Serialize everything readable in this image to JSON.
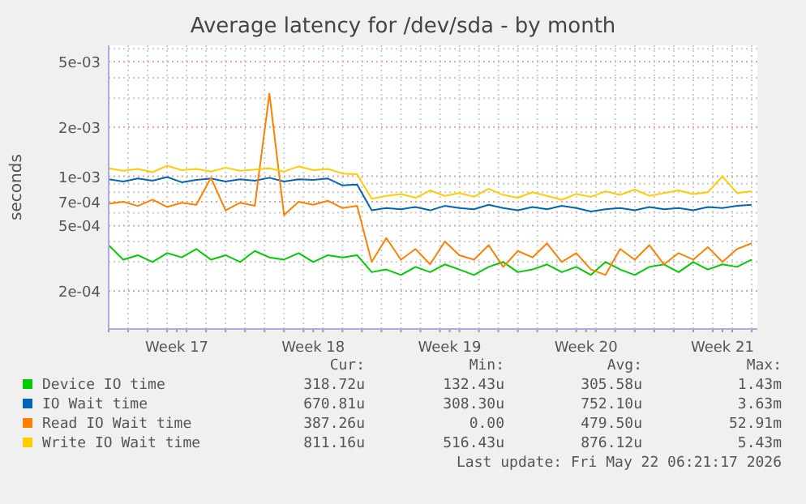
{
  "chart_data": {
    "type": "line",
    "title": "Average latency for /dev/sda - by month",
    "ylabel": "seconds",
    "log": "y",
    "grid": true,
    "legend": "bottom",
    "marker": "none",
    "line_style": "solid",
    "xlim": [
      "2026-04-20T00:00",
      "2026-05-23T07:00"
    ],
    "xticks": [
      {
        "value": "2026-04-20",
        "label": null
      },
      {
        "value": "2026-04-21",
        "label": null
      },
      {
        "value": "2026-04-22",
        "label": null
      },
      {
        "value": "2026-04-23",
        "label": null
      },
      {
        "value": "2026-04-23T12:00",
        "label": "Week 17"
      },
      {
        "value": "2026-04-24",
        "label": null
      },
      {
        "value": "2026-04-25",
        "label": null
      },
      {
        "value": "2026-04-26",
        "label": null
      },
      {
        "value": "2026-04-27",
        "label": null
      },
      {
        "value": "2026-04-28",
        "label": null
      },
      {
        "value": "2026-04-29",
        "label": null
      },
      {
        "value": "2026-04-30",
        "label": null
      },
      {
        "value": "2026-04-30T12:00",
        "label": "Week 18"
      },
      {
        "value": "2026-05-01",
        "label": null
      },
      {
        "value": "2026-05-02",
        "label": null
      },
      {
        "value": "2026-05-03",
        "label": null
      },
      {
        "value": "2026-05-04",
        "label": null
      },
      {
        "value": "2026-05-05",
        "label": null
      },
      {
        "value": "2026-05-06",
        "label": null
      },
      {
        "value": "2026-05-07",
        "label": null
      },
      {
        "value": "2026-05-07T12:00",
        "label": "Week 19"
      },
      {
        "value": "2026-05-08",
        "label": null
      },
      {
        "value": "2026-05-09",
        "label": null
      },
      {
        "value": "2026-05-10",
        "label": null
      },
      {
        "value": "2026-05-11",
        "label": null
      },
      {
        "value": "2026-05-12",
        "label": null
      },
      {
        "value": "2026-05-13",
        "label": null
      },
      {
        "value": "2026-05-14",
        "label": null
      },
      {
        "value": "2026-05-14T12:00",
        "label": "Week 20"
      },
      {
        "value": "2026-05-15",
        "label": null
      },
      {
        "value": "2026-05-16",
        "label": null
      },
      {
        "value": "2026-05-17",
        "label": null
      },
      {
        "value": "2026-05-18",
        "label": null
      },
      {
        "value": "2026-05-19",
        "label": null
      },
      {
        "value": "2026-05-20",
        "label": null
      },
      {
        "value": "2026-05-21",
        "label": null
      },
      {
        "value": "2026-05-21T12:00",
        "label": "Week 21"
      },
      {
        "value": "2026-05-22",
        "label": null
      },
      {
        "value": "2026-05-23",
        "label": null
      }
    ],
    "ylim": [
      0.000117,
      0.0063
    ],
    "yticks": [
      {
        "value": 0.0002,
        "label": "2e-04"
      },
      {
        "value": 0.0003,
        "label": null
      },
      {
        "value": 0.0004,
        "label": null
      },
      {
        "value": 0.0005,
        "label": "5e-04"
      },
      {
        "value": 0.0006,
        "label": null
      },
      {
        "value": 0.0007,
        "label": "7e-04"
      },
      {
        "value": 0.0008,
        "label": null
      },
      {
        "value": 0.0009,
        "label": null
      },
      {
        "value": 0.001,
        "label": "1e-03"
      },
      {
        "value": 0.002,
        "label": "2e-03"
      },
      {
        "value": 0.003,
        "label": null
      },
      {
        "value": 0.004,
        "label": null
      },
      {
        "value": 0.005,
        "label": "5e-03"
      },
      {
        "value": 0.006,
        "label": null
      }
    ],
    "x": [
      "2026-04-20T00:00",
      "2026-04-20T18:00",
      "2026-04-21T12:00",
      "2026-04-22T06:00",
      "2026-04-23T00:00",
      "2026-04-23T18:00",
      "2026-04-24T12:00",
      "2026-04-25T06:00",
      "2026-04-26T00:00",
      "2026-04-26T18:00",
      "2026-04-27T12:00",
      "2026-04-28T06:00",
      "2026-04-29T00:00",
      "2026-04-29T18:00",
      "2026-04-30T12:00",
      "2026-05-01T06:00",
      "2026-05-02T00:00",
      "2026-05-02T18:00",
      "2026-05-03T12:00",
      "2026-05-04T06:00",
      "2026-05-05T00:00",
      "2026-05-05T18:00",
      "2026-05-06T12:00",
      "2026-05-07T06:00",
      "2026-05-08T00:00",
      "2026-05-08T18:00",
      "2026-05-09T12:00",
      "2026-05-10T06:00",
      "2026-05-11T00:00",
      "2026-05-11T18:00",
      "2026-05-12T12:00",
      "2026-05-13T06:00",
      "2026-05-14T00:00",
      "2026-05-14T18:00",
      "2026-05-15T12:00",
      "2026-05-16T06:00",
      "2026-05-17T00:00",
      "2026-05-17T18:00",
      "2026-05-18T12:00",
      "2026-05-19T06:00",
      "2026-05-20T00:00",
      "2026-05-20T18:00",
      "2026-05-21T12:00",
      "2026-05-22T06:00",
      "2026-05-23T00:00"
    ],
    "series": [
      {
        "name": "Device IO time",
        "color": "#00cc00",
        "values": [
          0.00038,
          0.00031,
          0.00033,
          0.0003,
          0.00034,
          0.00032,
          0.00036,
          0.00031,
          0.00033,
          0.0003,
          0.00035,
          0.00032,
          0.00031,
          0.00034,
          0.0003,
          0.00033,
          0.00032,
          0.00033,
          0.00026,
          0.00027,
          0.00025,
          0.00028,
          0.00026,
          0.00029,
          0.00027,
          0.00025,
          0.00028,
          0.0003,
          0.00026,
          0.00027,
          0.00029,
          0.00026,
          0.00028,
          0.00025,
          0.0003,
          0.00027,
          0.00025,
          0.00028,
          0.00029,
          0.00026,
          0.0003,
          0.00027,
          0.00029,
          0.00028,
          0.00031
        ]
      },
      {
        "name": "IO Wait time",
        "color": "#0066b3",
        "values": [
          0.00096,
          0.00093,
          0.00097,
          0.00094,
          0.00099,
          0.00092,
          0.00095,
          0.00097,
          0.00093,
          0.00096,
          0.00094,
          0.00098,
          0.00093,
          0.00096,
          0.00095,
          0.00097,
          0.00088,
          0.00089,
          0.00062,
          0.00064,
          0.00063,
          0.00065,
          0.00062,
          0.00066,
          0.00064,
          0.00063,
          0.00067,
          0.00064,
          0.00062,
          0.00065,
          0.00063,
          0.00066,
          0.00064,
          0.00061,
          0.00063,
          0.00064,
          0.00062,
          0.00065,
          0.00063,
          0.00064,
          0.00062,
          0.00065,
          0.00064,
          0.00066,
          0.00067
        ]
      },
      {
        "name": "Read IO Wait time",
        "color": "#ff8000",
        "values": [
          0.00068,
          0.0007,
          0.00066,
          0.00072,
          0.00065,
          0.00069,
          0.00067,
          0.00098,
          0.00062,
          0.00069,
          0.00066,
          0.0032,
          0.00058,
          0.0007,
          0.00067,
          0.00071,
          0.00064,
          0.00066,
          0.0003,
          0.00042,
          0.00031,
          0.00036,
          0.00029,
          0.0004,
          0.00033,
          0.00031,
          0.00038,
          0.00028,
          0.00035,
          0.00032,
          0.00039,
          0.0003,
          0.00034,
          0.00027,
          0.00025,
          0.00036,
          0.00031,
          0.00038,
          0.00029,
          0.00034,
          0.00031,
          0.00037,
          0.0003,
          0.00036,
          0.00039
        ]
      },
      {
        "name": "Write IO Wait time",
        "color": "#ffcc00",
        "values": [
          0.00112,
          0.00108,
          0.00111,
          0.00106,
          0.00116,
          0.00109,
          0.00111,
          0.00107,
          0.00113,
          0.00108,
          0.0011,
          0.00112,
          0.00107,
          0.00115,
          0.00109,
          0.00111,
          0.00104,
          0.00103,
          0.00073,
          0.00076,
          0.00078,
          0.00074,
          0.00082,
          0.00076,
          0.00079,
          0.00075,
          0.00084,
          0.00077,
          0.00074,
          0.0008,
          0.00076,
          0.00072,
          0.00078,
          0.00075,
          0.00081,
          0.00077,
          0.00083,
          0.00076,
          0.00079,
          0.00082,
          0.00078,
          0.0008,
          0.001,
          0.00079,
          0.00081
        ]
      }
    ],
    "annotations": [
      "Cur:",
      "Min:",
      "Avg:",
      "Max:",
      "318.72u",
      "132.43u",
      "305.58u",
      "1.43m",
      "670.81u",
      "308.30u",
      "752.10u",
      "3.63m",
      "387.26u",
      "0.00",
      "479.50u",
      "52.91m",
      "811.16u",
      "516.43u",
      "876.12u",
      "5.43m",
      "Last update: Fri May 22 06:21:17 2026"
    ]
  }
}
